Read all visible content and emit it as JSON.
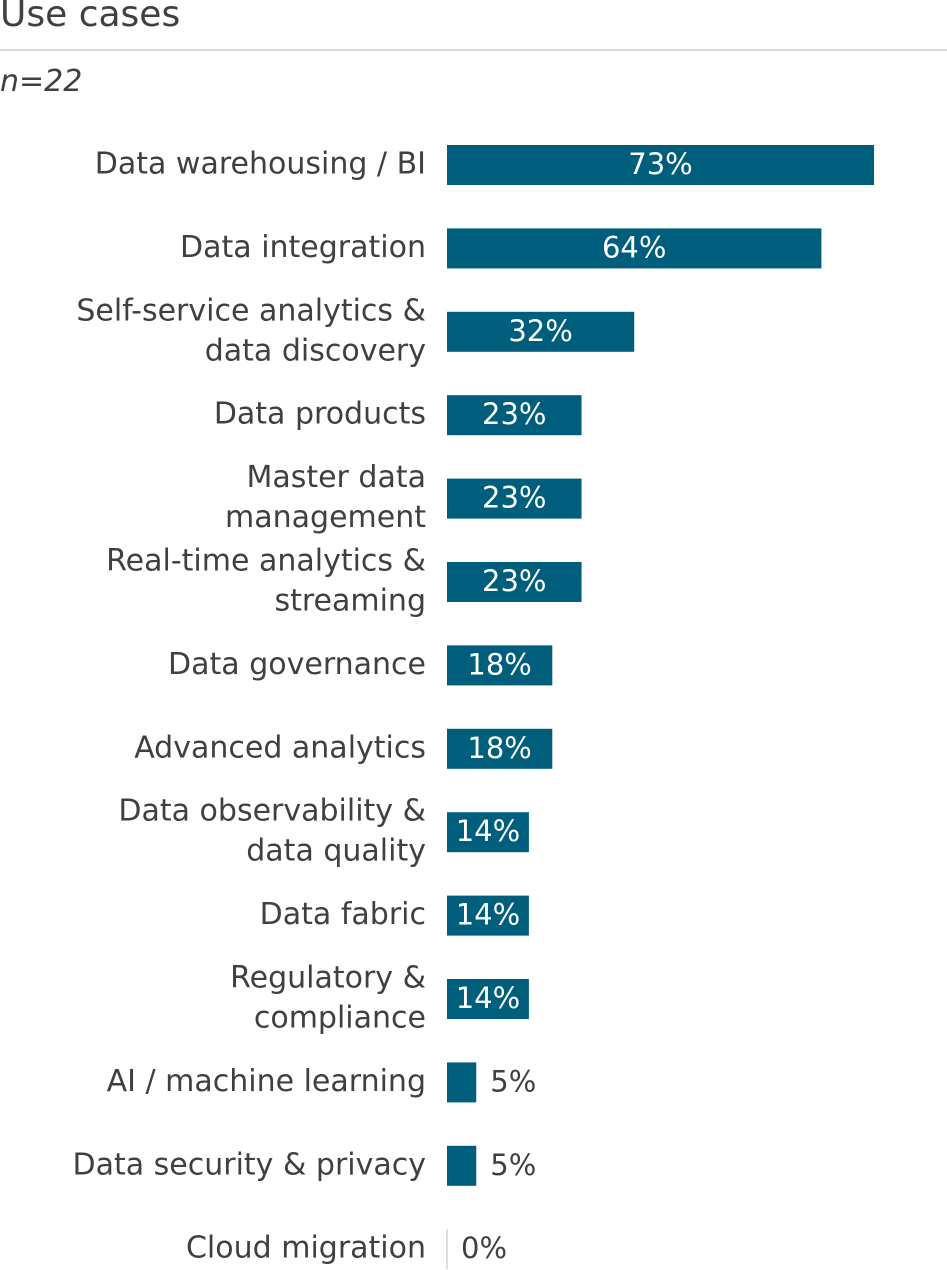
{
  "header": {
    "title": "Use cases",
    "subtitle": "n=22"
  },
  "colors": {
    "bar": "#005e7d",
    "zero_line": "#bfbfbf"
  },
  "chart_data": {
    "type": "bar",
    "orientation": "horizontal",
    "categories": [
      [
        "Data warehousing / BI"
      ],
      [
        "Data integration"
      ],
      [
        "Self-service analytics &",
        "data discovery"
      ],
      [
        "Data products"
      ],
      [
        "Master data",
        "management"
      ],
      [
        "Real-time analytics &",
        "streaming"
      ],
      [
        "Data governance"
      ],
      [
        "Advanced analytics"
      ],
      [
        "Data observability &",
        "data quality"
      ],
      [
        "Data fabric"
      ],
      [
        "Regulatory &",
        "compliance"
      ],
      [
        "AI / machine learning"
      ],
      [
        "Data security & privacy"
      ],
      [
        "Cloud migration"
      ]
    ],
    "values": [
      73,
      64,
      32,
      23,
      23,
      23,
      18,
      18,
      14,
      14,
      14,
      5,
      5,
      0
    ],
    "value_labels": [
      "73%",
      "64%",
      "32%",
      "23%",
      "23%",
      "23%",
      "18%",
      "18%",
      "14%",
      "14%",
      "14%",
      "5%",
      "5%",
      "0%"
    ],
    "xlim": [
      0,
      100
    ],
    "grid": false,
    "legend": "none"
  }
}
